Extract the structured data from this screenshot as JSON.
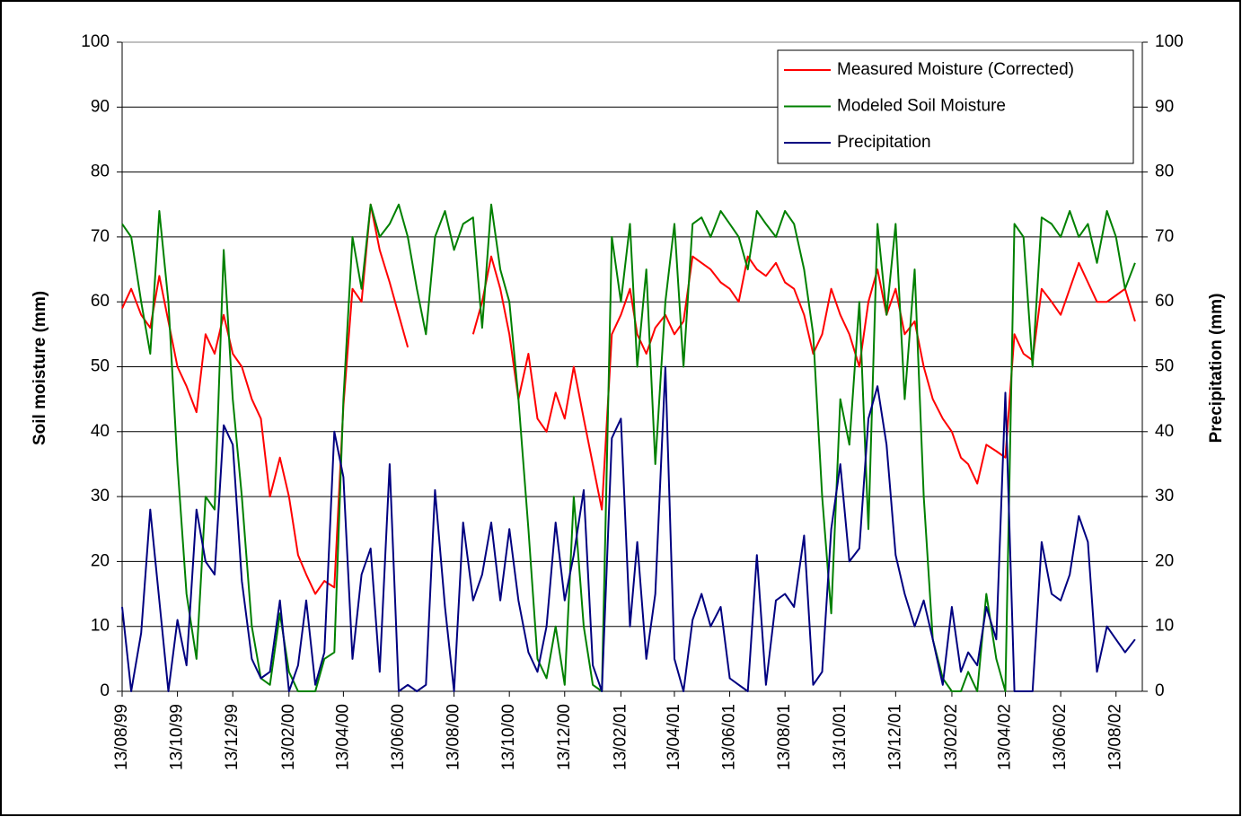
{
  "chart_data": {
    "type": "line",
    "ylabel": "Soil moisture  (mm)",
    "y2label": "Precipitation (mm)",
    "ylim": [
      0,
      100
    ],
    "yticks": [
      0,
      10,
      20,
      30,
      40,
      50,
      60,
      70,
      80,
      90,
      100
    ],
    "y2lim": [
      0,
      100
    ],
    "y2ticks": [
      0,
      10,
      20,
      30,
      40,
      50,
      60,
      70,
      80,
      90,
      100
    ],
    "xlim": [
      "13/08/99",
      "11/09/02"
    ],
    "xticks": [
      "13/08/99",
      "13/10/99",
      "13/12/99",
      "13/02/00",
      "13/04/00",
      "13/06/00",
      "13/08/00",
      "13/10/00",
      "13/12/00",
      "13/02/01",
      "13/04/01",
      "13/06/01",
      "13/08/01",
      "13/10/01",
      "13/12/01",
      "13/02/02",
      "13/04/02",
      "13/06/02",
      "13/08/02"
    ],
    "grid": true,
    "legend": "top-right",
    "x": [
      "13/08/99",
      "23/08/99",
      "03/09/99",
      "13/09/99",
      "23/09/99",
      "03/10/99",
      "13/10/99",
      "23/10/99",
      "03/11/99",
      "13/11/99",
      "23/11/99",
      "03/12/99",
      "13/12/99",
      "23/12/99",
      "03/01/00",
      "13/01/00",
      "23/01/00",
      "03/02/00",
      "13/02/00",
      "23/02/00",
      "03/03/00",
      "13/03/00",
      "23/03/00",
      "03/04/00",
      "13/04/00",
      "23/04/00",
      "03/05/00",
      "13/05/00",
      "23/05/00",
      "03/06/00",
      "13/06/00",
      "23/06/00",
      "03/07/00",
      "13/07/00",
      "23/07/00",
      "03/08/00",
      "13/08/00",
      "23/08/00",
      "03/09/00",
      "13/09/00",
      "23/09/00",
      "03/10/00",
      "13/10/00",
      "23/10/00",
      "03/11/00",
      "13/11/00",
      "23/11/00",
      "03/12/00",
      "13/12/00",
      "23/12/00",
      "03/01/01",
      "13/01/01",
      "23/01/01",
      "03/02/01",
      "13/02/01",
      "23/02/01",
      "03/03/01",
      "13/03/01",
      "23/03/01",
      "03/04/01",
      "13/04/01",
      "23/04/01",
      "03/05/01",
      "13/05/01",
      "23/05/01",
      "03/06/01",
      "13/06/01",
      "23/06/01",
      "03/07/01",
      "13/07/01",
      "23/07/01",
      "03/08/01",
      "13/08/01",
      "23/08/01",
      "03/09/01",
      "13/09/01",
      "23/09/01",
      "03/10/01",
      "13/10/01",
      "23/10/01",
      "03/11/01",
      "13/11/01",
      "23/11/01",
      "03/12/01",
      "13/12/01",
      "23/12/01",
      "03/01/02",
      "13/01/02",
      "23/01/02",
      "03/02/02",
      "13/02/02",
      "23/02/02",
      "03/03/02",
      "13/03/02",
      "23/03/02",
      "03/04/02",
      "13/04/02",
      "23/04/02",
      "03/05/02",
      "13/05/02",
      "23/05/02",
      "03/06/02",
      "13/06/02",
      "23/06/02",
      "03/07/02",
      "13/07/02",
      "23/07/02",
      "03/08/02",
      "13/08/02",
      "23/08/02",
      "03/09/02"
    ],
    "series": [
      {
        "name": "Measured Moisture (Corrected)",
        "color": "#ff0000",
        "values": [
          59,
          62,
          58,
          56,
          64,
          57,
          50,
          47,
          43,
          55,
          52,
          58,
          52,
          50,
          45,
          42,
          30,
          36,
          30,
          21,
          18,
          15,
          17,
          16,
          44,
          62,
          60,
          75,
          68,
          63,
          58,
          53,
          null,
          null,
          null,
          null,
          null,
          null,
          55,
          60,
          67,
          62,
          55,
          45,
          52,
          42,
          40,
          46,
          42,
          50,
          42,
          35,
          28,
          55,
          58,
          62,
          55,
          52,
          56,
          58,
          55,
          57,
          67,
          66,
          65,
          63,
          62,
          60,
          67,
          65,
          64,
          66,
          63,
          62,
          58,
          52,
          55,
          62,
          58,
          55,
          50,
          60,
          65,
          58,
          62,
          55,
          57,
          50,
          45,
          42,
          40,
          36,
          35,
          32,
          38,
          37,
          36,
          55,
          52,
          51,
          62,
          60,
          58,
          62,
          66,
          63,
          60,
          60,
          61,
          62,
          57
        ]
      },
      {
        "name": "Modeled Soil Moisture",
        "color": "#008000",
        "values": [
          72,
          70,
          60,
          52,
          74,
          60,
          35,
          15,
          5,
          30,
          28,
          68,
          45,
          30,
          10,
          2,
          1,
          12,
          3,
          0,
          0,
          0,
          5,
          6,
          45,
          70,
          62,
          75,
          70,
          72,
          75,
          70,
          62,
          55,
          70,
          74,
          68,
          72,
          73,
          56,
          75,
          65,
          60,
          45,
          25,
          5,
          2,
          10,
          1,
          30,
          10,
          1,
          0,
          70,
          60,
          72,
          50,
          65,
          35,
          60,
          72,
          50,
          72,
          73,
          70,
          74,
          72,
          70,
          65,
          74,
          72,
          70,
          74,
          72,
          65,
          55,
          30,
          12,
          45,
          38,
          60,
          25,
          72,
          58,
          72,
          45,
          65,
          30,
          8,
          2,
          0,
          0,
          3,
          0,
          15,
          5,
          0,
          72,
          70,
          50,
          73,
          72,
          70,
          74,
          70,
          72,
          66,
          74,
          70,
          62,
          66
        ]
      },
      {
        "name": "Precipitation",
        "color": "#000080",
        "axis": "y2",
        "values": [
          13,
          0,
          9,
          28,
          14,
          0,
          11,
          4,
          28,
          20,
          18,
          41,
          38,
          17,
          5,
          2,
          3,
          14,
          0,
          4,
          14,
          1,
          6,
          40,
          33,
          5,
          18,
          22,
          3,
          35,
          0,
          1,
          0,
          1,
          31,
          13,
          0,
          26,
          14,
          18,
          26,
          14,
          25,
          14,
          6,
          3,
          10,
          26,
          14,
          21,
          31,
          4,
          0,
          39,
          42,
          10,
          23,
          5,
          15,
          50,
          5,
          0,
          11,
          15,
          10,
          13,
          2,
          1,
          0,
          21,
          1,
          14,
          15,
          13,
          24,
          1,
          3,
          25,
          35,
          20,
          22,
          42,
          47,
          38,
          21,
          15,
          10,
          14,
          8,
          1,
          13,
          3,
          6,
          4,
          13,
          8,
          46,
          0,
          0,
          0,
          23,
          15,
          14,
          18,
          27,
          23,
          3,
          10,
          8,
          6,
          8
        ]
      }
    ]
  }
}
